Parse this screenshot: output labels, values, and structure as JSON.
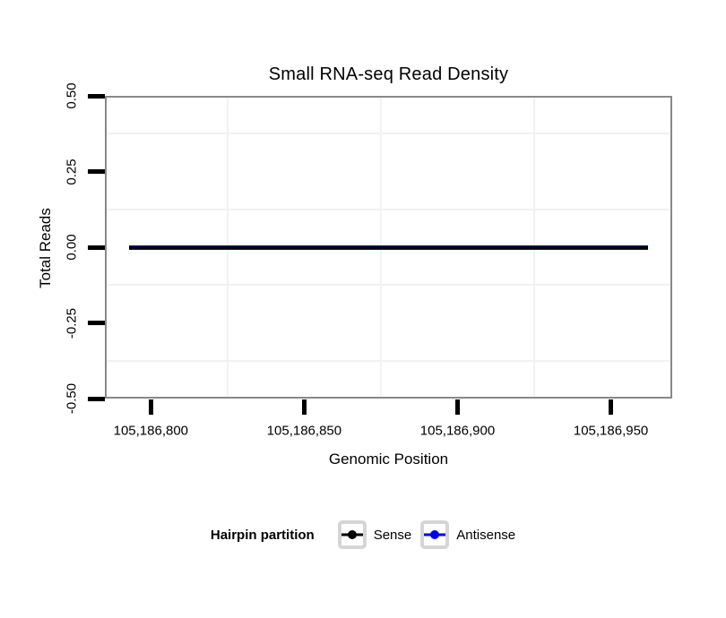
{
  "title": "Small RNA-seq Read Density",
  "chart_data": {
    "type": "line",
    "title": "Small RNA-seq Read Density",
    "xlabel": "Genomic Position",
    "ylabel": "Total Reads",
    "x_axis": {
      "range": [
        105186785,
        105186970
      ],
      "ticks": [
        105186800,
        105186850,
        105186900,
        105186950
      ],
      "tick_labels": [
        "105,186,800",
        "105,186,850",
        "105,186,900",
        "105,186,950"
      ],
      "minor_gridlines": [
        105186825,
        105186875,
        105186925
      ]
    },
    "y_axis": {
      "range": [
        -0.5,
        0.5
      ],
      "ticks": [
        0.5,
        0.25,
        0,
        -0.25,
        -0.5
      ],
      "tick_labels": [
        "0.50",
        "0.25",
        "0.00",
        "-0.25",
        "-0.50"
      ],
      "minor_gridlines": [
        0.375,
        0.125,
        -0.125,
        -0.375
      ]
    },
    "series": [
      {
        "name": "Antisense",
        "color": "#0000ee",
        "y_value": 0,
        "x_start": 105186793,
        "x_end": 105186962
      },
      {
        "name": "Sense",
        "color": "#000000",
        "y_value": 0,
        "x_start": 105186793,
        "x_end": 105186962
      }
    ],
    "grid": "minor gridlines only, very light grey, on white panel",
    "legend_position": "bottom"
  },
  "legend": {
    "title": "Hairpin partition",
    "items": [
      {
        "label": "Sense",
        "color": "#000000"
      },
      {
        "label": "Antisense",
        "color": "#0000ee"
      }
    ]
  },
  "colors": {
    "background": "#ffffff",
    "panel_border": "#898989",
    "grid": "#f2f2f2",
    "tick": "#000000",
    "legend_key_border": "#d5d5d5"
  }
}
